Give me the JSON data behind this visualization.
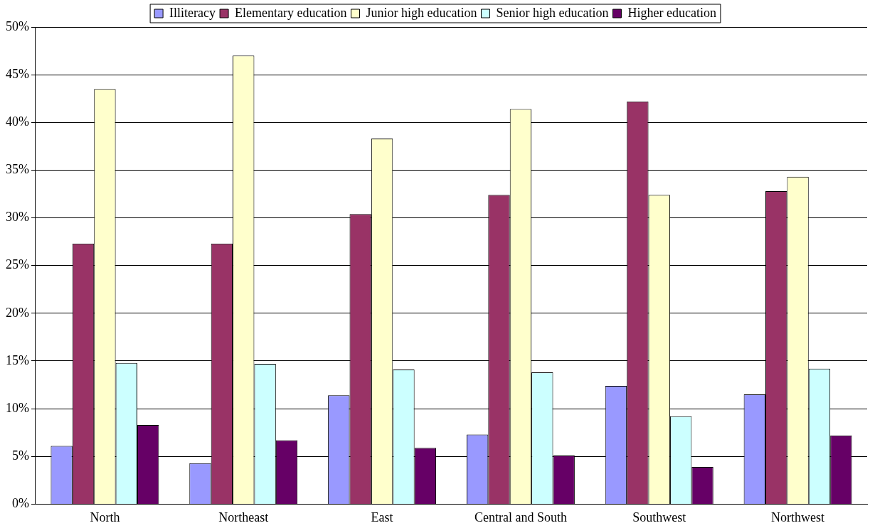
{
  "chart_data": {
    "type": "bar",
    "categories": [
      "North",
      "Northeast",
      "East",
      "Central and South",
      "Southwest",
      "Northwest"
    ],
    "series": [
      {
        "name": "Illiteracy",
        "color": "#9999ff",
        "values": [
          6.1,
          4.3,
          11.4,
          7.3,
          12.4,
          11.5
        ]
      },
      {
        "name": "Elementary education",
        "color": "#993366",
        "values": [
          27.3,
          27.3,
          30.4,
          32.4,
          42.2,
          32.8
        ]
      },
      {
        "name": "Junior high education",
        "color": "#ffffcc",
        "values": [
          43.5,
          47.0,
          38.3,
          41.4,
          32.4,
          34.3
        ]
      },
      {
        "name": "Senior high education",
        "color": "#ccffff",
        "values": [
          14.8,
          14.7,
          14.1,
          13.8,
          9.2,
          14.2
        ]
      },
      {
        "name": "Higher education",
        "color": "#660066",
        "values": [
          8.3,
          6.7,
          5.9,
          5.1,
          3.9,
          7.2
        ]
      }
    ],
    "ylim": [
      0,
      50
    ],
    "yticks": [
      {
        "value": 0,
        "label": "0%"
      },
      {
        "value": 5,
        "label": "5%"
      },
      {
        "value": 10,
        "label": "10%"
      },
      {
        "value": 15,
        "label": "15%"
      },
      {
        "value": 20,
        "label": "20%"
      },
      {
        "value": 25,
        "label": "25%"
      },
      {
        "value": 30,
        "label": "30%"
      },
      {
        "value": 35,
        "label": "35%"
      },
      {
        "value": 40,
        "label": "40%"
      },
      {
        "value": 45,
        "label": "45%"
      },
      {
        "value": 50,
        "label": "50%"
      }
    ],
    "grid": "y",
    "legend": "top"
  }
}
